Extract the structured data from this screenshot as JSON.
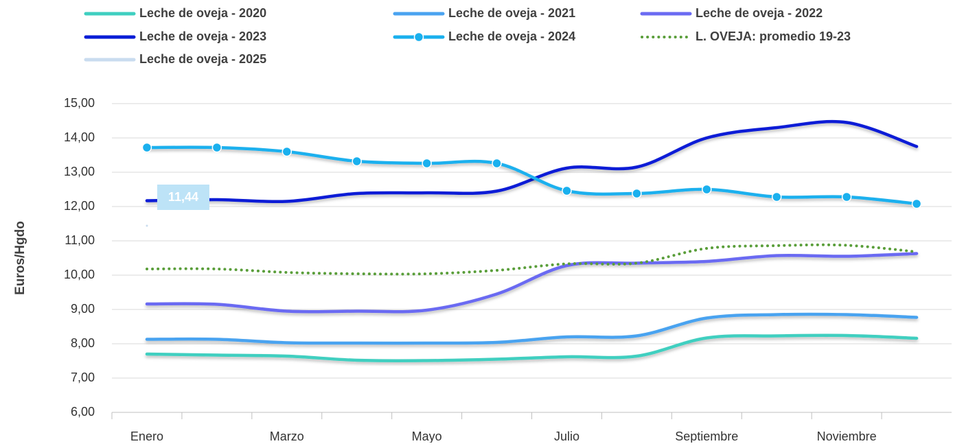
{
  "chart_data": {
    "type": "line",
    "y_label": "Euros/Hgdo",
    "categories": [
      "Enero",
      null,
      "Marzo",
      null,
      "Mayo",
      null,
      "Julio",
      null,
      "Septiembre",
      null,
      "Noviembre",
      null
    ],
    "ylim": [
      6,
      15
    ],
    "yticks": [
      {
        "value": 6,
        "label": "6,00"
      },
      {
        "value": 7,
        "label": "7,00"
      },
      {
        "value": 8,
        "label": "8,00"
      },
      {
        "value": 9,
        "label": "9,00"
      },
      {
        "value": 10,
        "label": "10,00"
      },
      {
        "value": 11,
        "label": "11,00"
      },
      {
        "value": 12,
        "label": "12,00"
      },
      {
        "value": 13,
        "label": "13,00"
      },
      {
        "value": 14,
        "label": "14,00"
      },
      {
        "value": 15,
        "label": "15,00"
      }
    ],
    "grid": true,
    "series": [
      {
        "name": "Leche de oveja - 2020",
        "color": "#3fcfc0",
        "values": [
          7.7,
          7.67,
          7.64,
          7.52,
          7.51,
          7.55,
          7.62,
          7.64,
          8.17,
          8.23,
          8.24,
          8.16
        ]
      },
      {
        "name": "Leche de oveja - 2021",
        "color": "#4aa3f0",
        "values": [
          8.13,
          8.13,
          8.03,
          8.02,
          8.02,
          8.04,
          8.2,
          8.23,
          8.75,
          8.85,
          8.85,
          8.77
        ]
      },
      {
        "name": "Leche de oveja - 2022",
        "color": "#6b6bf2",
        "values": [
          9.16,
          9.15,
          8.95,
          8.95,
          8.98,
          9.45,
          10.28,
          10.35,
          10.4,
          10.57,
          10.55,
          10.63
        ]
      },
      {
        "name": "Leche de oveja - 2023",
        "color": "#0a1ed6",
        "values": [
          12.17,
          12.2,
          12.15,
          12.38,
          12.4,
          12.45,
          13.12,
          13.15,
          14.0,
          14.3,
          14.45,
          13.75
        ]
      },
      {
        "name": "Leche de oveja - 2024",
        "color": "#1ab0ee",
        "markers": true,
        "values": [
          13.72,
          13.72,
          13.6,
          13.32,
          13.26,
          13.26,
          12.46,
          12.38,
          12.5,
          12.28,
          12.28,
          12.08
        ]
      },
      {
        "name": "L. OVEJA: promedio 19-23",
        "color": "#5a9e3a",
        "dotted": true,
        "values": [
          10.18,
          10.18,
          10.08,
          10.04,
          10.04,
          10.14,
          10.33,
          10.35,
          10.78,
          10.86,
          10.87,
          10.68
        ]
      },
      {
        "name": "Leche de oveja - 2025",
        "color": "#c9dcef",
        "values": [
          11.44,
          null,
          null,
          null,
          null,
          null,
          null,
          null,
          null,
          null,
          null,
          null
        ],
        "value_labels": [
          "11,44",
          null,
          null,
          null,
          null,
          null,
          null,
          null,
          null,
          null,
          null,
          null
        ]
      }
    ]
  }
}
